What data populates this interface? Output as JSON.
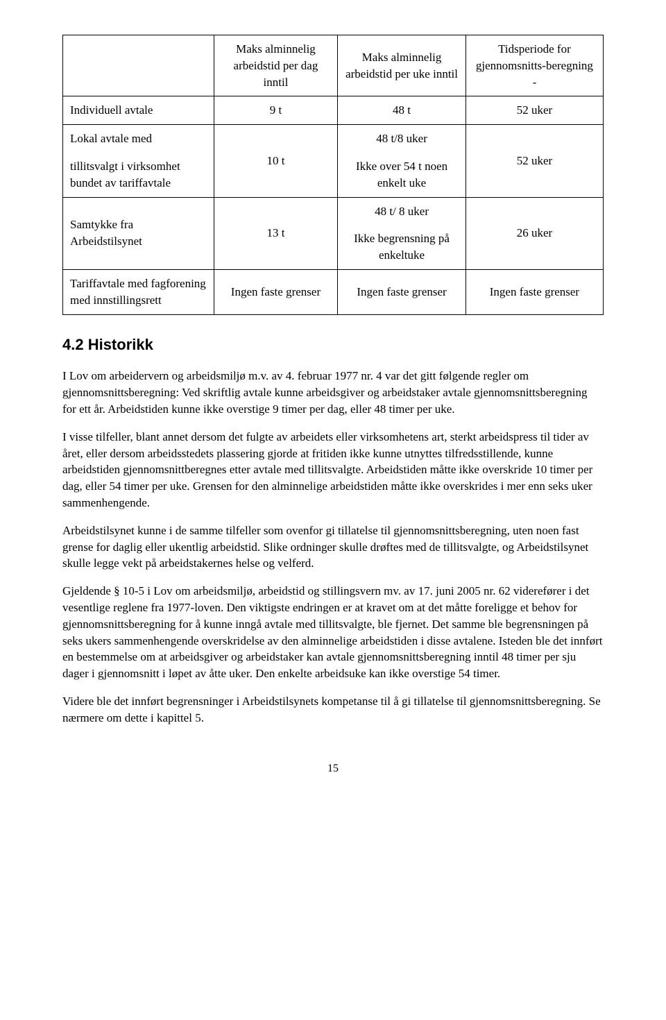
{
  "table": {
    "headers": {
      "col1": "",
      "col2": "Maks alminnelig arbeidstid per dag inntil",
      "col3": "Maks alminnelig arbeidstid per uke inntil",
      "col4": "Tidsperiode for gjennomsnitts-beregning -"
    },
    "r1": {
      "c1": "Individuell avtale",
      "c2": "9 t",
      "c3": "48 t",
      "c4": "52 uker"
    },
    "r2": {
      "c1a": "Lokal avtale med",
      "c1b": "tillitsvalgt i virksomhet bundet av tariffavtale",
      "c2": "10 t",
      "c3a": "48 t/8 uker",
      "c3b": "Ikke over 54 t noen enkelt uke",
      "c4": "52 uker"
    },
    "r3": {
      "c1": "Samtykke fra Arbeidstilsynet",
      "c2": "13 t",
      "c3a": "48 t/ 8 uker",
      "c3b": "Ikke begrensning på enkeltuke",
      "c4": "26 uker"
    },
    "r4": {
      "c1": "Tariffavtale med fagforening med innstillingsrett",
      "c2": "Ingen faste grenser",
      "c3": "Ingen faste grenser",
      "c4": "Ingen faste grenser"
    }
  },
  "heading": "4.2  Historikk",
  "p1": "I Lov om arbeidervern og arbeidsmiljø m.v. av 4. februar 1977 nr. 4 var det gitt følgende regler om gjennomsnittsberegning: Ved skriftlig avtale kunne arbeidsgiver og arbeidstaker avtale gjennomsnittsberegning for ett år. Arbeidstiden kunne ikke overstige 9 timer per dag, eller 48 timer per uke.",
  "p2": "I visse tilfeller, blant annet dersom det fulgte av arbeidets eller virksomhetens art, sterkt arbeidspress til tider av året, eller dersom arbeidsstedets plassering gjorde at fritiden ikke kunne utnyttes tilfredsstillende, kunne arbeidstiden gjennomsnittberegnes etter avtale med tillitsvalgte. Arbeidstiden måtte ikke overskride 10 timer per dag, eller 54 timer per uke. Grensen for den alminnelige arbeidstiden måtte ikke overskrides i mer enn seks uker sammenhengende.",
  "p3": "Arbeidstilsynet kunne i de samme tilfeller som ovenfor gi tillatelse til gjennomsnittsberegning, uten noen fast grense for daglig eller ukentlig arbeidstid. Slike ordninger skulle drøftes med de tillitsvalgte, og Arbeidstilsynet skulle legge vekt på arbeidstakernes helse og velferd.",
  "p4": "Gjeldende § 10-5 i Lov om arbeidsmiljø, arbeidstid og stillingsvern mv. av 17. juni 2005 nr. 62 viderefører i det vesentlige reglene fra 1977-loven. Den viktigste endringen er at kravet om at det måtte foreligge et behov for gjennomsnittsberegning for å kunne inngå avtale med tillitsvalgte, ble fjernet. Det samme ble begrensningen på seks ukers sammenhengende overskridelse av den alminnelige arbeidstiden i disse avtalene. Isteden ble det innført en bestemmelse om at arbeidsgiver og arbeidstaker kan avtale gjennomsnittsberegning inntil 48 timer per sju dager i gjennomsnitt i løpet av åtte uker. Den enkelte arbeidsuke kan ikke overstige 54 timer.",
  "p5": "Videre ble det innført begrensninger i Arbeidstilsynets kompetanse til å gi tillatelse til gjennomsnittsberegning. Se nærmere om dette i kapittel 5.",
  "pagenum": "15"
}
